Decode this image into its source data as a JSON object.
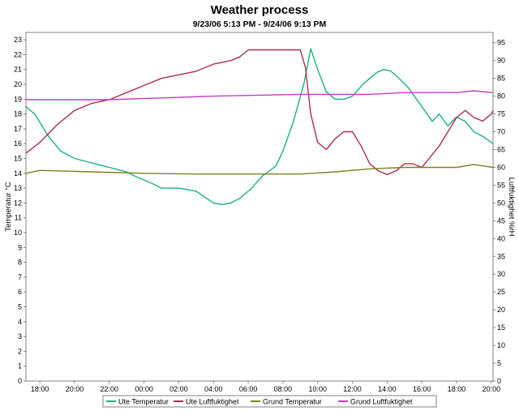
{
  "chart_data": {
    "type": "line",
    "title": "Weather process",
    "subtitle": "9/23/06 5:13 PM - 9/24/06 9:13 PM",
    "x_axis": {
      "ticks": [
        "18:00",
        "20:00",
        "22:00",
        "00:00",
        "02:00",
        "04:00",
        "06:00",
        "08:00",
        "10:00",
        "12:00",
        "14:00",
        "16:00",
        "18:00",
        "20:00"
      ],
      "range_hours": [
        -0.8,
        26.1
      ]
    },
    "y_left": {
      "label": "Temperatur °C",
      "ylim": [
        0,
        23.5
      ],
      "ticks": [
        0,
        1,
        2,
        3,
        4,
        5,
        6,
        7,
        8,
        9,
        10,
        11,
        12,
        13,
        14,
        15,
        16,
        17,
        18,
        19,
        20,
        21,
        22,
        23
      ]
    },
    "y_right": {
      "label": "Luftfuktighet %rH",
      "ylim": [
        0,
        97.9
      ],
      "ticks": [
        0,
        5,
        10,
        15,
        20,
        25,
        30,
        35,
        40,
        45,
        50,
        55,
        60,
        65,
        70,
        75,
        80,
        85,
        90,
        95
      ]
    },
    "grid": true,
    "legend_position": "bottom",
    "series": [
      {
        "name": "Ute Temperatur",
        "axis": "left",
        "color": "#1aaf84",
        "x": [
          -0.8,
          -0.3,
          0.5,
          1.2,
          2,
          3,
          4,
          5,
          5.5,
          6.5,
          7,
          8,
          9,
          10,
          10.5,
          11,
          11.5,
          12.2,
          12.8,
          13.6,
          14,
          14.6,
          15.2,
          15.6,
          16,
          16.5,
          17,
          17.5,
          18,
          18.3,
          18.6,
          19,
          19.4,
          19.8,
          20.2,
          20.6,
          21.2,
          22,
          22.6,
          23,
          23.5,
          24,
          24.5,
          25,
          25.5,
          26.1
        ],
        "y": [
          18.5,
          18,
          16.5,
          15.5,
          15,
          14.7,
          14.4,
          14.1,
          13.8,
          13.3,
          13.0,
          13.0,
          12.8,
          12.0,
          11.9,
          12.0,
          12.3,
          13.0,
          13.8,
          14.5,
          15.5,
          17.5,
          20,
          22.4,
          21,
          19.5,
          19.0,
          19.0,
          19.2,
          19.6,
          20,
          20.4,
          20.8,
          21.0,
          20.9,
          20.5,
          19.8,
          18.5,
          17.5,
          18.0,
          17.2,
          17.8,
          17.5,
          16.8,
          16.5,
          16.0
        ]
      },
      {
        "name": "Ute Luftfuktighet",
        "axis": "right",
        "color": "#a8304a",
        "x": [
          -0.8,
          0,
          1,
          2,
          3,
          4,
          5,
          6,
          7,
          8,
          9,
          10,
          11,
          11.5,
          12,
          13,
          14,
          14.5,
          15,
          15.3,
          15.6,
          16,
          16.5,
          17,
          17.5,
          18,
          18.5,
          19,
          19.5,
          20,
          20.5,
          21,
          21.5,
          22,
          22.5,
          23,
          23.5,
          24,
          24.5,
          25,
          25.5,
          26,
          26.1
        ],
        "y": [
          64,
          67,
          72,
          76,
          78,
          79,
          81,
          83,
          85,
          86,
          87,
          89,
          90,
          91,
          93,
          93,
          93,
          93,
          93,
          88,
          75,
          67,
          65,
          68,
          70,
          70,
          66,
          61,
          59,
          58,
          59,
          61,
          61,
          60,
          63,
          66,
          70,
          74,
          76,
          74,
          73,
          75,
          76
        ]
      },
      {
        "name": "Grund Temperatur",
        "axis": "left",
        "color": "#808020",
        "x": [
          -0.8,
          0,
          3,
          6,
          9,
          11,
          15,
          17,
          19,
          21,
          24,
          25,
          26.1
        ],
        "y": [
          14.0,
          14.2,
          14.1,
          14.0,
          13.95,
          13.95,
          13.95,
          14.1,
          14.3,
          14.4,
          14.4,
          14.6,
          14.4
        ]
      },
      {
        "name": "Grund Luftfuktighet",
        "axis": "right",
        "color": "#c040c0",
        "x": [
          -0.8,
          4,
          7,
          10,
          15,
          19,
          21,
          24,
          25,
          26.1
        ],
        "y": [
          79,
          79,
          79.5,
          80,
          80.5,
          80.5,
          81,
          81,
          81.5,
          81
        ]
      }
    ]
  }
}
